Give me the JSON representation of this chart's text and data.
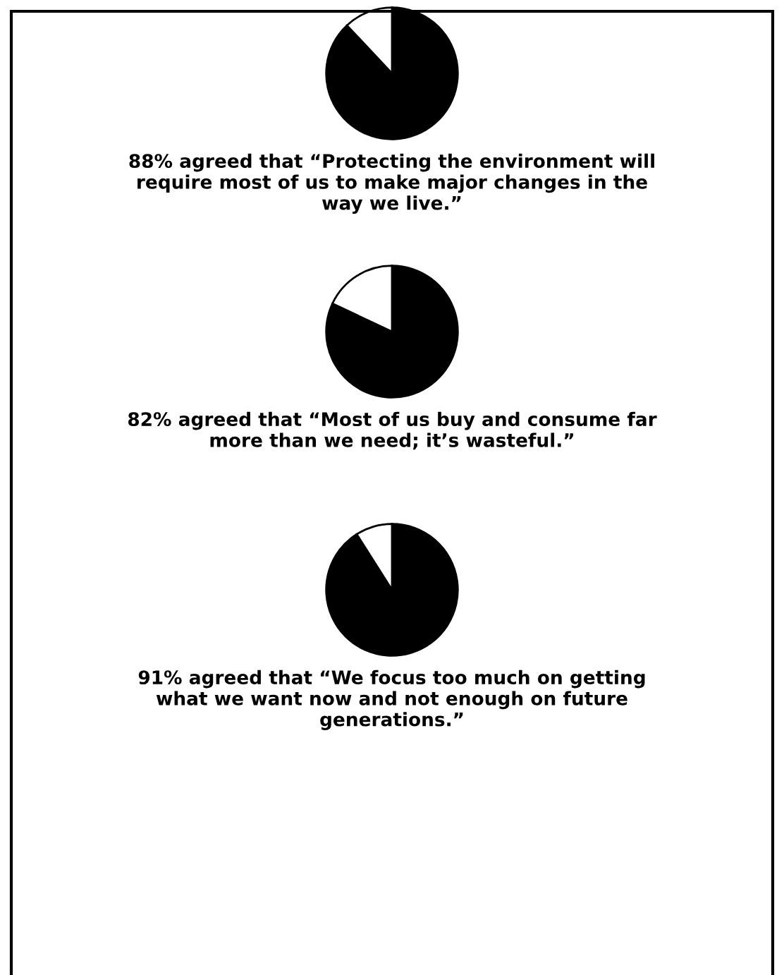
{
  "chart_data": [
    {
      "type": "pie",
      "categories": [
        null,
        null
      ],
      "values": [
        88,
        12
      ],
      "colors": [
        "#000000",
        "#ffffff"
      ],
      "title": "88% agreed that “Protecting the environment will require most of us to make major changes in the way we live.”"
    },
    {
      "type": "pie",
      "categories": [
        null,
        null
      ],
      "values": [
        82,
        18
      ],
      "colors": [
        "#000000",
        "#ffffff"
      ],
      "title": "82% agreed that “Most of us buy and consume far more than we need; it’s wasteful.”"
    },
    {
      "type": "pie",
      "categories": [
        null,
        null
      ],
      "values": [
        91,
        9
      ],
      "colors": [
        "#000000",
        "#ffffff"
      ],
      "title": "91% agreed that “We focus too much on getting what we want now and not enough on future generations.”"
    }
  ]
}
